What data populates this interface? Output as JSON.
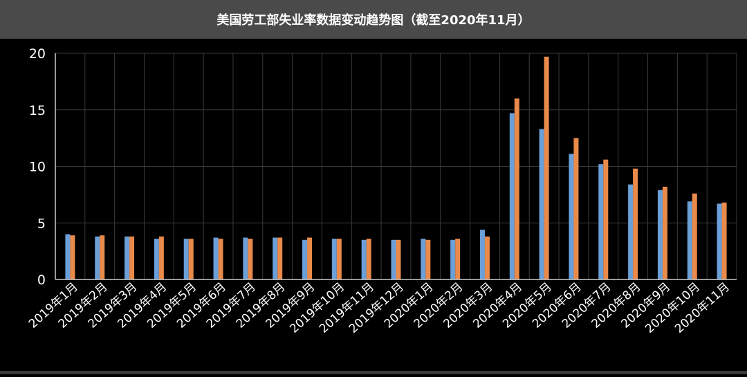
{
  "chart_data": {
    "type": "bar",
    "title": "美国劳工部失业率数据变动趋势图（截至2020年11月）",
    "categories": [
      "2019年1月",
      "2019年2月",
      "2019年3月",
      "2019年4月",
      "2019年5月",
      "2019年6月",
      "2019年7月",
      "2019年8月",
      "2019年9月",
      "2019年10月",
      "2019年11月",
      "2019年12月",
      "2020年1月",
      "2020年2月",
      "2020年3月",
      "2020年4月",
      "2020年5月",
      "2020年6月",
      "2020年7月",
      "2020年8月",
      "2020年9月",
      "2020年10月",
      "2020年11月"
    ],
    "series": [
      {
        "color": "#6a9fd8",
        "values": [
          4.0,
          3.8,
          3.8,
          3.6,
          3.6,
          3.7,
          3.7,
          3.7,
          3.5,
          3.6,
          3.5,
          3.5,
          3.6,
          3.5,
          4.4,
          14.7,
          13.3,
          11.1,
          10.2,
          8.4,
          7.9,
          6.9,
          6.7
        ]
      },
      {
        "color": "#ea8a4a",
        "values": [
          3.9,
          3.9,
          3.8,
          3.8,
          3.6,
          3.6,
          3.6,
          3.7,
          3.7,
          3.6,
          3.6,
          3.5,
          3.5,
          3.6,
          3.8,
          16.0,
          19.7,
          12.5,
          10.6,
          9.8,
          8.2,
          7.6,
          6.8
        ]
      }
    ],
    "ylim": [
      0,
      20
    ],
    "yticks": [
      "0",
      "5",
      "10",
      "15",
      "20"
    ],
    "grid": true
  }
}
